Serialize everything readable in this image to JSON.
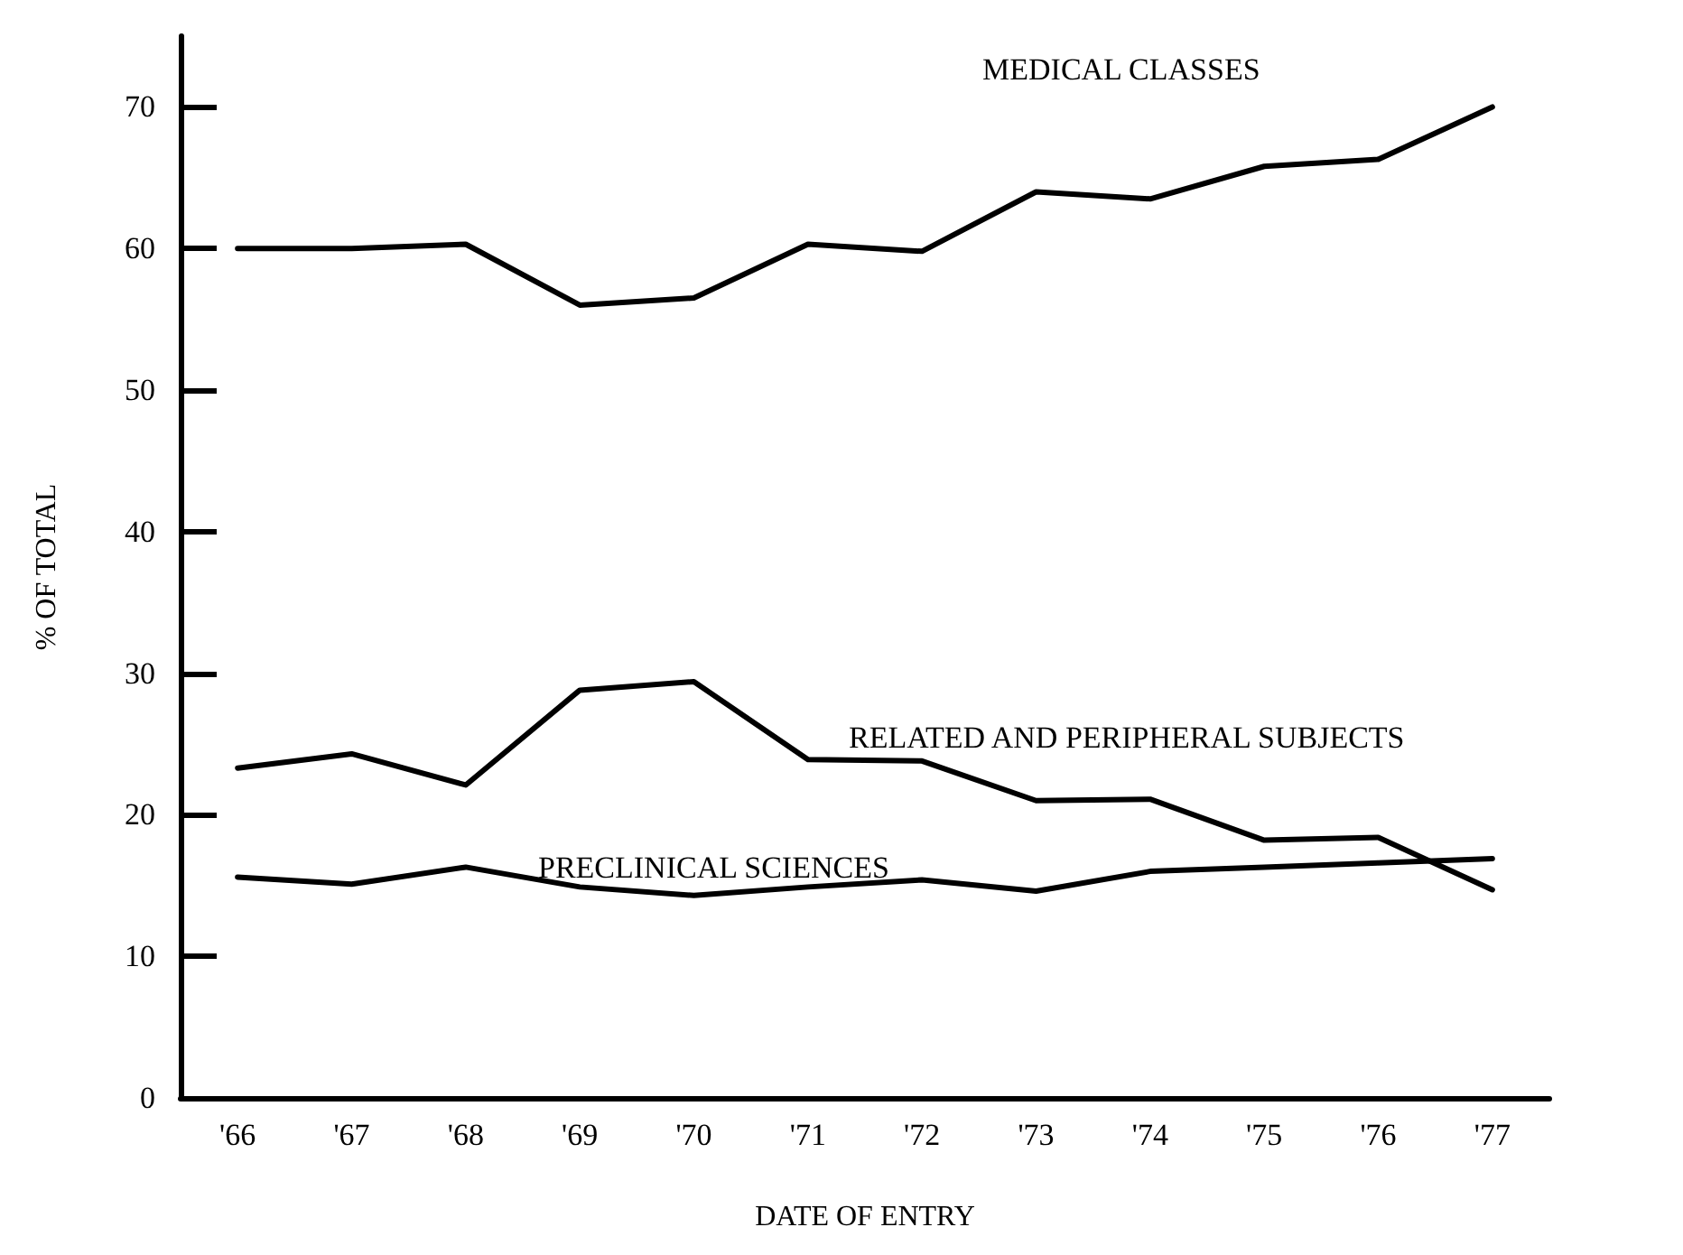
{
  "chart_data": {
    "type": "line",
    "xlabel": "DATE OF ENTRY",
    "ylabel": "% OF TOTAL",
    "categories": [
      "'66",
      "'67",
      "'68",
      "'69",
      "'70",
      "'71",
      "'72",
      "'73",
      "'74",
      "'75",
      "'76",
      "'77"
    ],
    "series": [
      {
        "name": "MEDICAL CLASSES",
        "color": "#000000",
        "values": [
          60,
          60,
          60.3,
          56,
          56.5,
          60.3,
          59.8,
          64,
          63.5,
          65.8,
          66.3,
          70
        ]
      },
      {
        "name": "RELATED AND PERIPHERAL SUBJECTS",
        "color": "#000000",
        "values": [
          23.3,
          24.3,
          22.1,
          28.8,
          29.4,
          23.9,
          23.8,
          21,
          21.1,
          18.2,
          18.4,
          14.7
        ]
      },
      {
        "name": "PRECLINICAL SCIENCES",
        "color": "#000000",
        "values": [
          15.6,
          15.1,
          16.3,
          14.9,
          14.3,
          14.9,
          15.4,
          14.6,
          16,
          16.3,
          16.6,
          16.9
        ]
      }
    ],
    "ylim": [
      0,
      75
    ],
    "yticks": [
      0,
      10,
      20,
      30,
      40,
      50,
      60,
      70
    ],
    "grid": false,
    "legend": false,
    "marker": "none",
    "line_style": "solid"
  }
}
